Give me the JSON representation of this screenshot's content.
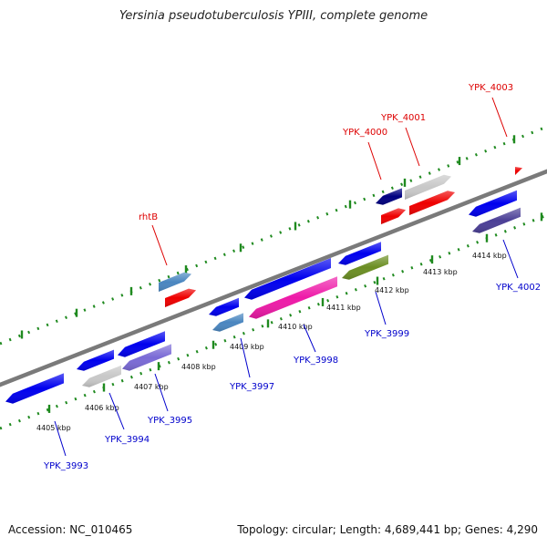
{
  "title": "Yersinia pseudotuberculosis YPIII, complete genome",
  "footer": {
    "accession": "Accession: NC_010465",
    "topology": "Topology: circular; Length: 4,689,441 bp; Genes: 4,290"
  },
  "colors": {
    "backbone": "#7a7a7a",
    "ticks": "#1f8a1f",
    "forward_label": "#dd0000",
    "reverse_label": "#0000cc"
  },
  "ticks": [
    {
      "label": "4405 kbp"
    },
    {
      "label": "4406 kbp"
    },
    {
      "label": "4407 kbp"
    },
    {
      "label": "4408 kbp"
    },
    {
      "label": "4409 kbp"
    },
    {
      "label": "4410 kbp"
    },
    {
      "label": "4411 kbp"
    },
    {
      "label": "4412 kbp"
    },
    {
      "label": "4413 kbp"
    },
    {
      "label": "4414 kbp"
    }
  ],
  "forward_labels": [
    {
      "text": "rhtB"
    },
    {
      "text": "YPK_4000"
    },
    {
      "text": "YPK_4001"
    },
    {
      "text": "YPK_4003"
    }
  ],
  "reverse_labels": [
    {
      "text": "YPK_3993"
    },
    {
      "text": "YPK_3994"
    },
    {
      "text": "YPK_3995"
    },
    {
      "text": "YPK_3997"
    },
    {
      "text": "YPK_3998"
    },
    {
      "text": "YPK_3999"
    },
    {
      "text": "YPK_4002"
    }
  ],
  "genes": [
    {
      "name": "gene-reverse-1",
      "color": "#0000ee"
    },
    {
      "name": "gene-reverse-2",
      "color": "#0000ee"
    },
    {
      "name": "gene-reverse-3",
      "color": "#0000ee"
    },
    {
      "name": "gene-ypk-3994",
      "color": "#c8c8c8"
    },
    {
      "name": "gene-ypk-3995",
      "color": "#7a6ad6"
    },
    {
      "name": "gene-rhtb-upper",
      "color": "#4a86c0"
    },
    {
      "name": "gene-rhtb",
      "color": "#ee0000"
    },
    {
      "name": "gene-reverse-4",
      "color": "#0000ee"
    },
    {
      "name": "gene-ypk-3997",
      "color": "#4a86c0"
    },
    {
      "name": "gene-reverse-5",
      "color": "#0000ee"
    },
    {
      "name": "gene-ypk-3998",
      "color": "#ee1aa8"
    },
    {
      "name": "gene-reverse-6",
      "color": "#0000ee"
    },
    {
      "name": "gene-ypk-3999",
      "color": "#6b8e23"
    },
    {
      "name": "gene-upper-dark",
      "color": "#000080"
    },
    {
      "name": "gene-ypk-4000",
      "color": "#ee0000"
    },
    {
      "name": "gene-upper-gray",
      "color": "#c8c8c8"
    },
    {
      "name": "gene-ypk-4001",
      "color": "#ee0000"
    },
    {
      "name": "gene-reverse-7",
      "color": "#0000ee"
    },
    {
      "name": "gene-ypk-4002",
      "color": "#4b3f96"
    },
    {
      "name": "gene-ypk-4003",
      "color": "#ee0000"
    }
  ]
}
